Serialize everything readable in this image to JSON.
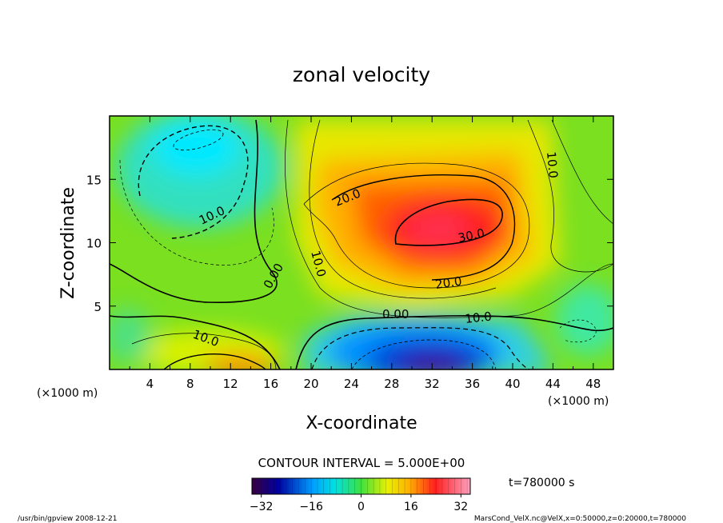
{
  "chart_data": {
    "type": "heatmap",
    "title": "zonal velocity",
    "xlabel": "X-coordinate",
    "ylabel": "Z-coordinate",
    "x_unit": "(×1000 m)",
    "y_unit": "(×1000 m)",
    "xlim": [
      0,
      50
    ],
    "ylim": [
      0,
      20
    ],
    "x_ticks": [
      "4",
      "8",
      "12",
      "16",
      "20",
      "24",
      "28",
      "32",
      "36",
      "40",
      "44",
      "48"
    ],
    "y_ticks": [
      "5",
      "10",
      "15"
    ],
    "contour_interval_label": "CONTOUR INTERVAL = 5.000E+00",
    "time_label": "t=780000 s",
    "colorbar_ticks": [
      "−32",
      "−16",
      "0",
      "16",
      "32"
    ],
    "colorbar_range": [
      -35,
      35
    ],
    "contour_labels": [
      "10.0",
      "20.0",
      "30.0",
      "0.00",
      "10.0",
      "20.0",
      "0.00",
      "10.0",
      "10.0"
    ],
    "features": [
      {
        "kind": "max",
        "x": 33,
        "z": 12,
        "value": 36
      },
      {
        "kind": "min",
        "x": 33,
        "z": 1,
        "value": -34
      },
      {
        "kind": "min",
        "x": 9,
        "z": 17,
        "value": -10
      },
      {
        "kind": "max",
        "x": 13,
        "z": 0.3,
        "value": 28
      }
    ],
    "footer_left": "/usr/bin/gpview   2008-12-21",
    "footer_right": "MarsCond_VelX.nc@VelX,x=0:50000,z=0:20000,t=780000"
  }
}
